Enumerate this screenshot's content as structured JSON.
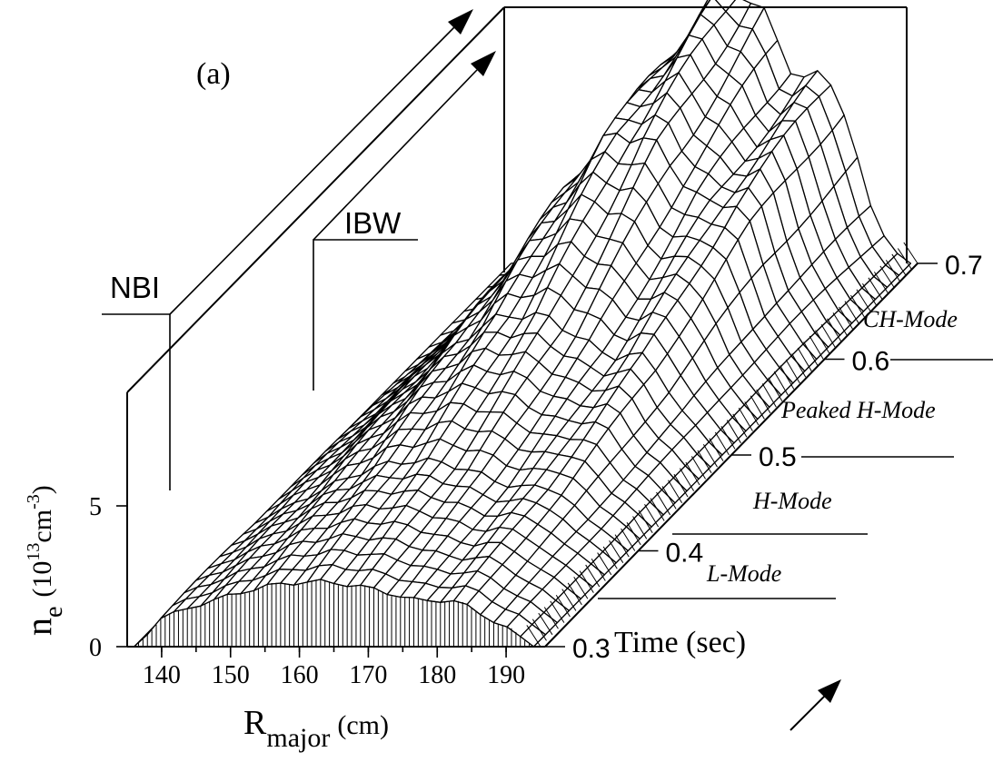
{
  "chart_data": {
    "type": "surface",
    "panel_label": "(a)",
    "z_axis": {
      "label_main": "n",
      "label_sub": "e",
      "label_unit_open": "(10",
      "label_unit_exp": "13",
      "label_unit_mid": "cm",
      "label_unit_exp2": "-3",
      "label_unit_close": ")",
      "ticks": [
        "0",
        "5"
      ],
      "range": [
        0,
        10
      ]
    },
    "x_axis": {
      "label_main": "R",
      "label_sub": "major",
      "label_unit": "(cm)",
      "ticks": [
        "140",
        "150",
        "160",
        "170",
        "180",
        "190"
      ],
      "range": [
        135,
        195
      ]
    },
    "y_axis": {
      "label": "Time (sec)",
      "ticks": [
        "0.3",
        "0.4",
        "0.5",
        "0.6",
        "0.7"
      ],
      "range": [
        0.3,
        0.7
      ]
    },
    "heating_labels": {
      "nbi": "NBI",
      "ibw": "IBW"
    },
    "phases": [
      {
        "label": "L-Mode",
        "start": 0.3,
        "end": 0.42
      },
      {
        "label": "H-Mode",
        "start": 0.42,
        "end": 0.52
      },
      {
        "label": "Peaked H-Mode",
        "start": 0.52,
        "end": 0.6
      },
      {
        "label": "CH-Mode",
        "start": 0.6,
        "end": 0.7
      }
    ],
    "surface_peak_density_vs_time": [
      {
        "t": 0.3,
        "ne": 2.3
      },
      {
        "t": 0.4,
        "ne": 3.2
      },
      {
        "t": 0.5,
        "ne": 5.0
      },
      {
        "t": 0.6,
        "ne": 8.0
      },
      {
        "t": 0.7,
        "ne": 9.8
      }
    ]
  }
}
